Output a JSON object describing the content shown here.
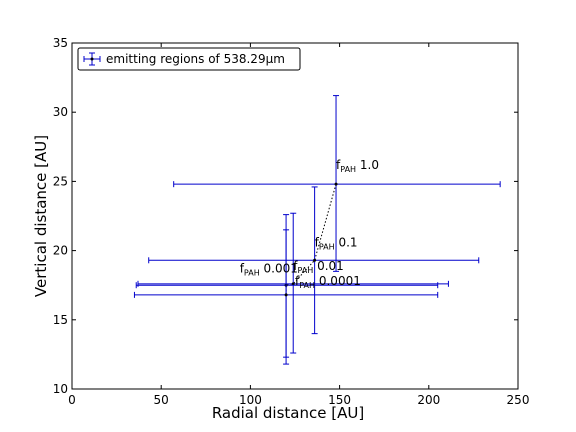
{
  "chart_data": {
    "type": "scatter",
    "title": "",
    "xlabel": "Radial distance [AU]",
    "ylabel": "Vertical distance [AU]",
    "xlim": [
      0,
      250
    ],
    "ylim": [
      10,
      35
    ],
    "xticks": [
      0,
      50,
      100,
      150,
      200,
      250
    ],
    "yticks": [
      10,
      15,
      20,
      25,
      30,
      35
    ],
    "grid": false,
    "legend_position": "top-left",
    "series_color": "#0000cc",
    "line_color": "#000000",
    "series": [
      {
        "name": "emitting regions of 538.29μm",
        "points": [
          {
            "x": 148,
            "y": 24.8,
            "xerr": [
              57,
              240
            ],
            "yerr": [
              18.5,
              31.2
            ]
          },
          {
            "x": 136,
            "y": 19.3,
            "xerr": [
              43,
              228
            ],
            "yerr": [
              14.0,
              24.6
            ]
          },
          {
            "x": 124,
            "y": 17.6,
            "xerr": [
              37,
              211
            ],
            "yerr": [
              12.6,
              22.7
            ]
          },
          {
            "x": 120,
            "y": 17.5,
            "xerr": [
              36,
              205
            ],
            "yerr": [
              12.3,
              22.6
            ]
          },
          {
            "x": 120,
            "y": 16.8,
            "xerr": [
              35,
              205
            ],
            "yerr": [
              11.8,
              21.5
            ]
          }
        ]
      }
    ],
    "annotations": [
      {
        "base": "f",
        "sub": "PAH",
        "value": "1.0",
        "x": 148,
        "y": 25.9
      },
      {
        "base": "f",
        "sub": "PAH",
        "value": "0.1",
        "x": 136,
        "y": 20.3
      },
      {
        "base": "f",
        "sub": "PAH",
        "value": "0.01",
        "x": 124,
        "y": 18.6
      },
      {
        "base": "f",
        "sub": "PAH",
        "value": "0.001",
        "x": 94,
        "y": 18.4
      },
      {
        "base": "f",
        "sub": "PAH",
        "value": "0.0001",
        "x": 125,
        "y": 17.5
      }
    ]
  }
}
